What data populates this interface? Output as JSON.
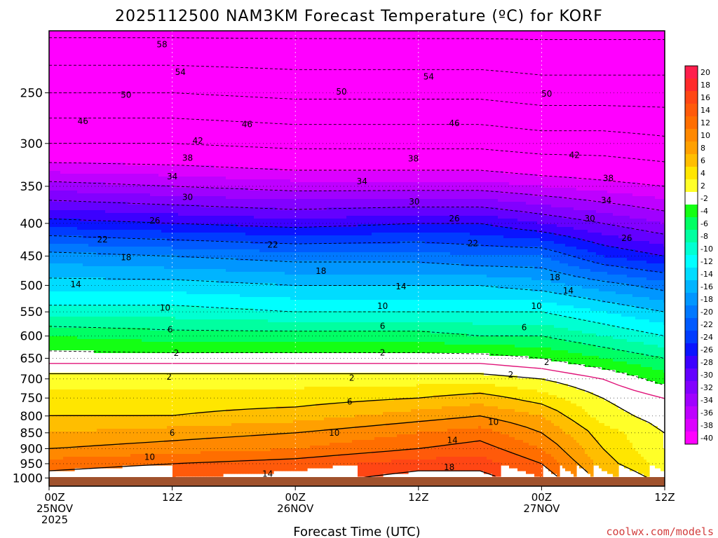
{
  "chart_data": {
    "type": "heatmap",
    "title": "2025112500 NAM3KM Forecast Temperature (ºC) for KORF",
    "xlabel": "Forecast Time (UTC)",
    "ylabel": "",
    "x_ticks": [
      {
        "hour": 0,
        "lines": [
          "00Z",
          "25NOV",
          "2025"
        ]
      },
      {
        "hour": 12,
        "lines": [
          "12Z"
        ]
      },
      {
        "hour": 24,
        "lines": [
          "00Z",
          "26NOV"
        ]
      },
      {
        "hour": 36,
        "lines": [
          "12Z"
        ]
      },
      {
        "hour": 48,
        "lines": [
          "00Z",
          "27NOV"
        ]
      },
      {
        "hour": 60,
        "lines": [
          "12Z"
        ]
      }
    ],
    "xlim_hours": [
      0,
      60
    ],
    "y_ticks": [
      250,
      300,
      350,
      400,
      450,
      500,
      550,
      600,
      650,
      700,
      750,
      800,
      850,
      900,
      950,
      1000
    ],
    "ylim": [
      200,
      1030
    ],
    "y_scale": "log",
    "y_inverted": true,
    "grid": true,
    "colorbar": {
      "placement": "right",
      "labels": [
        "20",
        "18",
        "16",
        "14",
        "12",
        "10",
        "8",
        "6",
        "4",
        "2",
        "-2",
        "-4",
        "-6",
        "-8",
        "-10",
        "-12",
        "-14",
        "-16",
        "-18",
        "-20",
        "-22",
        "-24",
        "-26",
        "-28",
        "-30",
        "-32",
        "-34",
        "-36",
        "-38",
        "-40"
      ],
      "colors": [
        "#ff1e4c",
        "#ff2a2a",
        "#ff4614",
        "#ff5a0a",
        "#ff6e00",
        "#ff8800",
        "#ffa000",
        "#ffbe00",
        "#ffe600",
        "#ffff28",
        "#ffffff",
        "#14ff14",
        "#00ff64",
        "#00ffa0",
        "#00ffd2",
        "#00ffff",
        "#00dcff",
        "#00b4ff",
        "#0096ff",
        "#0078ff",
        "#005aff",
        "#003cff",
        "#0a14ff",
        "#3c00ff",
        "#6400ff",
        "#8200ff",
        "#a000ff",
        "#be00ff",
        "#dc00ff",
        "#ff00ff"
      ]
    },
    "temperature_profiles": [
      {
        "hour": 0,
        "p": [
          200,
          250,
          300,
          350,
          400,
          450,
          500,
          550,
          600,
          650,
          700,
          750,
          800,
          850,
          900,
          950,
          1000,
          1030
        ],
        "t": [
          -59,
          -50,
          -42,
          -33,
          -25,
          -17,
          -13,
          -9,
          -4,
          -1,
          3,
          5,
          6,
          8,
          10,
          13,
          15,
          15
        ]
      },
      {
        "hour": 12,
        "p": [
          200,
          250,
          300,
          350,
          400,
          450,
          500,
          550,
          600,
          650,
          700,
          750,
          800,
          850,
          900,
          950,
          1000,
          1030
        ],
        "t": [
          -59,
          -50,
          -42,
          -34,
          -26,
          -18,
          -13,
          -9,
          -5,
          -1,
          3,
          5,
          6,
          9,
          11,
          14,
          16,
          16
        ]
      },
      {
        "hour": 24,
        "p": [
          200,
          250,
          300,
          350,
          400,
          450,
          500,
          550,
          600,
          650,
          700,
          750,
          800,
          850,
          900,
          950,
          1000,
          1030
        ],
        "t": [
          -59,
          -51,
          -43,
          -35,
          -27,
          -19,
          -14,
          -10,
          -5,
          -1,
          3,
          5,
          7,
          10,
          12,
          15,
          17,
          17
        ]
      },
      {
        "hour": 36,
        "p": [
          200,
          250,
          300,
          350,
          400,
          450,
          500,
          550,
          600,
          650,
          700,
          750,
          800,
          850,
          900,
          950,
          1000,
          1030
        ],
        "t": [
          -59,
          -51,
          -43,
          -35,
          -26,
          -19,
          -14,
          -10,
          -5,
          -1,
          3,
          6,
          9,
          12,
          14,
          17,
          19,
          19
        ]
      },
      {
        "hour": 42,
        "p": [
          200,
          250,
          300,
          350,
          400,
          450,
          500,
          550,
          600,
          650,
          700,
          750,
          800,
          850,
          900,
          950,
          1000,
          1030
        ],
        "t": [
          -59,
          -51,
          -43,
          -35,
          -26,
          -20,
          -14,
          -10,
          -6,
          -1,
          3,
          7,
          10,
          13,
          15,
          17,
          19,
          19
        ]
      },
      {
        "hour": 48,
        "p": [
          200,
          250,
          300,
          350,
          400,
          450,
          500,
          550,
          600,
          650,
          700,
          750,
          800,
          850,
          900,
          950,
          1000,
          1030
        ],
        "t": [
          -59,
          -52,
          -44,
          -36,
          -28,
          -20,
          -15,
          -10,
          -6,
          -2,
          2,
          5,
          8,
          10,
          12,
          14,
          16,
          16
        ]
      },
      {
        "hour": 54,
        "p": [
          200,
          250,
          300,
          350,
          400,
          450,
          500,
          550,
          600,
          650,
          700,
          750,
          800,
          850,
          900,
          950,
          1000,
          1030
        ],
        "t": [
          -59,
          -52,
          -44,
          -37,
          -30,
          -24,
          -17,
          -12,
          -8,
          -4,
          0,
          2,
          3,
          5,
          6,
          7,
          9,
          9
        ]
      },
      {
        "hour": 60,
        "p": [
          200,
          250,
          300,
          350,
          400,
          450,
          500,
          550,
          600,
          650,
          700,
          750,
          800,
          850,
          900,
          950,
          1000,
          1030
        ],
        "t": [
          -59,
          -52,
          -45,
          -38,
          -32,
          -26,
          -19,
          -14,
          -10,
          -6,
          -3,
          0,
          1,
          2,
          2,
          3,
          5,
          5
        ]
      }
    ],
    "contour_labels": [
      {
        "text": "58",
        "hour": 11,
        "p": 210
      },
      {
        "text": "54",
        "hour": 12.8,
        "p": 232
      },
      {
        "text": "54",
        "hour": 37,
        "p": 236
      },
      {
        "text": "50",
        "hour": 7.5,
        "p": 252
      },
      {
        "text": "50",
        "hour": 28.5,
        "p": 249
      },
      {
        "text": "50",
        "hour": 48.5,
        "p": 251
      },
      {
        "text": "46",
        "hour": 3.3,
        "p": 277
      },
      {
        "text": "46",
        "hour": 19.3,
        "p": 280
      },
      {
        "text": "46",
        "hour": 39.5,
        "p": 279
      },
      {
        "text": "42",
        "hour": 14.5,
        "p": 297
      },
      {
        "text": "42",
        "hour": 51.2,
        "p": 313
      },
      {
        "text": "38",
        "hour": 13.5,
        "p": 316
      },
      {
        "text": "38",
        "hour": 35.5,
        "p": 317
      },
      {
        "text": "38",
        "hour": 54.5,
        "p": 340
      },
      {
        "text": "34",
        "hour": 12,
        "p": 338
      },
      {
        "text": "34",
        "hour": 30.5,
        "p": 344
      },
      {
        "text": "34",
        "hour": 54.3,
        "p": 368
      },
      {
        "text": "30",
        "hour": 13.5,
        "p": 364
      },
      {
        "text": "30",
        "hour": 35.6,
        "p": 370
      },
      {
        "text": "30",
        "hour": 52.7,
        "p": 393
      },
      {
        "text": "26",
        "hour": 10.3,
        "p": 396
      },
      {
        "text": "26",
        "hour": 39.5,
        "p": 393
      },
      {
        "text": "26",
        "hour": 56.3,
        "p": 422
      },
      {
        "text": "22",
        "hour": 5.2,
        "p": 424
      },
      {
        "text": "22",
        "hour": 21.8,
        "p": 432
      },
      {
        "text": "22",
        "hour": 41.3,
        "p": 430
      },
      {
        "text": "18",
        "hour": 7.5,
        "p": 452
      },
      {
        "text": "18",
        "hour": 26.5,
        "p": 475
      },
      {
        "text": "18",
        "hour": 49.3,
        "p": 486
      },
      {
        "text": "14",
        "hour": 2.6,
        "p": 498
      },
      {
        "text": "14",
        "hour": 34.3,
        "p": 502
      },
      {
        "text": "14",
        "hour": 50.6,
        "p": 510
      },
      {
        "text": "10",
        "hour": 11.3,
        "p": 542
      },
      {
        "text": "10",
        "hour": 32.5,
        "p": 539
      },
      {
        "text": "10",
        "hour": 47.5,
        "p": 539
      },
      {
        "text": "6",
        "hour": 11.8,
        "p": 586
      },
      {
        "text": "6",
        "hour": 32.5,
        "p": 579
      },
      {
        "text": "6",
        "hour": 46.3,
        "p": 582
      },
      {
        "text": "2",
        "hour": 12.4,
        "p": 638
      },
      {
        "text": "2",
        "hour": 32.5,
        "p": 637
      },
      {
        "text": "2",
        "hour": 48.5,
        "p": 659
      },
      {
        "text": "2",
        "hour": 11.7,
        "p": 695
      },
      {
        "text": "2",
        "hour": 29.5,
        "p": 698
      },
      {
        "text": "2",
        "hour": 45,
        "p": 690
      },
      {
        "text": "6",
        "hour": 29.3,
        "p": 760
      },
      {
        "text": "6",
        "hour": 12,
        "p": 850
      },
      {
        "text": "10",
        "hour": 43.3,
        "p": 818
      },
      {
        "text": "10",
        "hour": 27.8,
        "p": 850
      },
      {
        "text": "10",
        "hour": 9.8,
        "p": 928
      },
      {
        "text": "14",
        "hour": 39.3,
        "p": 873
      },
      {
        "text": "14",
        "hour": 21.3,
        "p": 985
      },
      {
        "text": "18",
        "hour": 39,
        "p": 962
      }
    ]
  },
  "credit": "coolwx.com/models"
}
